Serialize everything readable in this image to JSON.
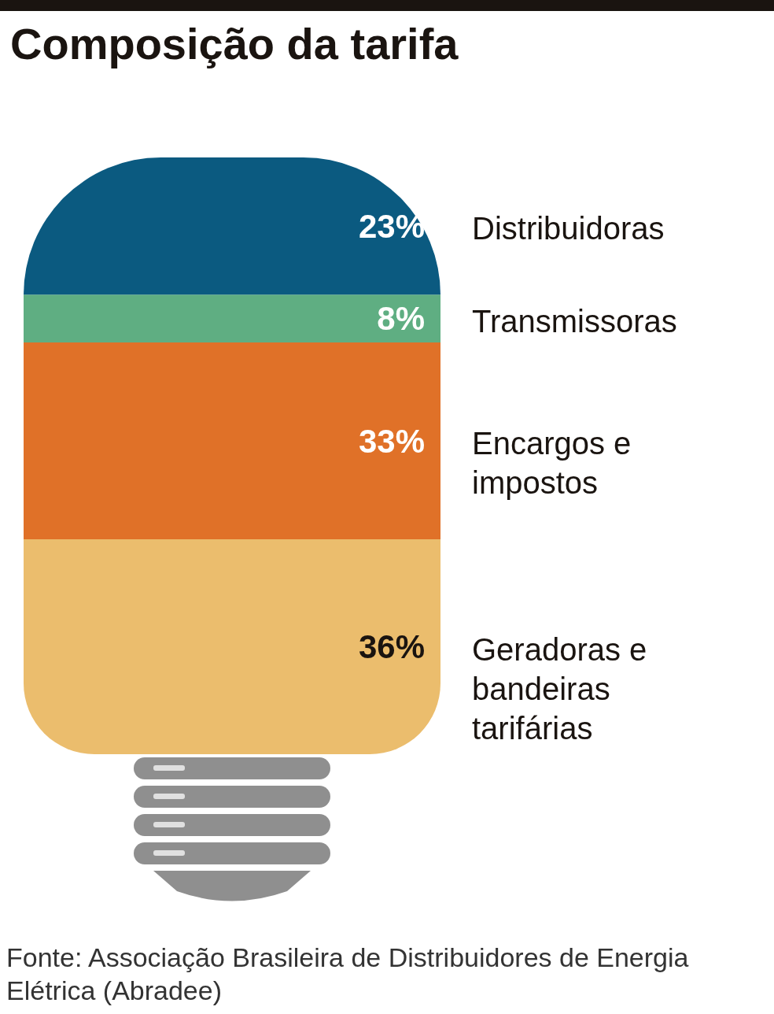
{
  "chart_data": {
    "type": "bar",
    "title": "Composição da tarifa",
    "stacked": true,
    "categories": [
      null
    ],
    "tick_labels": false,
    "legend": false,
    "series": [
      {
        "name": "Geradoras e bandeiras tarifárias",
        "color": "#ebbd6d",
        "values": [
          36
        ],
        "value_labels": [
          "36%"
        ]
      },
      {
        "name": "Encargos e impostos",
        "color": "#e07128",
        "values": [
          33
        ],
        "value_labels": [
          "33%"
        ]
      },
      {
        "name": "Transmissoras",
        "color": "#5fae82",
        "values": [
          8
        ],
        "value_labels": [
          "8%"
        ]
      },
      {
        "name": "Distribuidoras",
        "color": "#0b5a80",
        "values": [
          23
        ],
        "value_labels": [
          "23%"
        ]
      }
    ],
    "annotations": [
      "Fonte: Associação Brasileira de Distribuidores de Energia Elétrica (Abradee)"
    ]
  }
}
